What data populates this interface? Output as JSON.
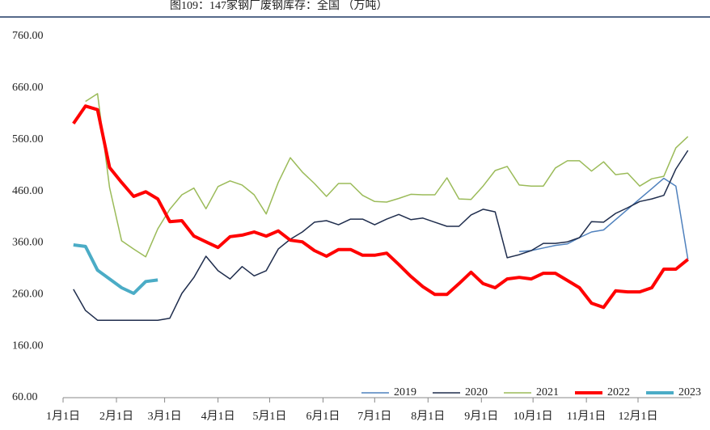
{
  "chart_data": {
    "type": "line",
    "title": "图109：147家钢厂废钢库存：全国 （万吨）",
    "x": [
      6,
      13,
      20,
      27,
      34,
      41,
      48,
      55,
      62,
      69,
      76,
      83,
      90,
      97,
      104,
      111,
      118,
      125,
      132,
      139,
      146,
      153,
      160,
      167,
      174,
      181,
      188,
      195,
      202,
      209,
      216,
      223,
      230,
      237,
      244,
      251,
      258,
      265,
      272,
      279,
      286,
      293,
      300,
      307,
      314,
      321,
      328,
      335,
      342,
      349,
      356,
      363
    ],
    "xlim": [
      0,
      365
    ],
    "xticks": [
      {
        "value": 0,
        "label": "1月1日"
      },
      {
        "value": 31,
        "label": "2月1日"
      },
      {
        "value": 59,
        "label": "3月1日"
      },
      {
        "value": 90,
        "label": "4月1日"
      },
      {
        "value": 120,
        "label": "5月1日"
      },
      {
        "value": 151,
        "label": "6月1日"
      },
      {
        "value": 181,
        "label": "7月1日"
      },
      {
        "value": 212,
        "label": "8月1日"
      },
      {
        "value": 243,
        "label": "9月1日"
      },
      {
        "value": 273,
        "label": "10月1日"
      },
      {
        "value": 304,
        "label": "11月1日"
      },
      {
        "value": 334,
        "label": "12月1日"
      }
    ],
    "ylim": [
      60,
      760
    ],
    "yticks": [
      {
        "value": 60,
        "label": "60.00"
      },
      {
        "value": 160,
        "label": "160.00"
      },
      {
        "value": 260,
        "label": "260.00"
      },
      {
        "value": 360,
        "label": "360.00"
      },
      {
        "value": 460,
        "label": "460.00"
      },
      {
        "value": 560,
        "label": "560.00"
      },
      {
        "value": 660,
        "label": "660.00"
      },
      {
        "value": 760,
        "label": "760.00"
      }
    ],
    "grid": false,
    "legend": "bottom-right",
    "series": [
      {
        "name": "2019",
        "color": "#4f81bd",
        "width": 1.5,
        "values": [
          null,
          null,
          null,
          null,
          null,
          null,
          null,
          null,
          null,
          null,
          null,
          null,
          null,
          null,
          null,
          null,
          null,
          null,
          null,
          null,
          null,
          null,
          null,
          null,
          null,
          null,
          null,
          null,
          null,
          null,
          null,
          null,
          null,
          null,
          null,
          null,
          null,
          343,
          345,
          350,
          355,
          358,
          370,
          381,
          385,
          405,
          425,
          445,
          465,
          485,
          470,
          328
        ]
      },
      {
        "name": "2020",
        "color": "#1f2d4d",
        "width": 1.5,
        "values": [
          270,
          229,
          210,
          210,
          210,
          210,
          210,
          210,
          214,
          262,
          293,
          334,
          306,
          290,
          314,
          296,
          306,
          348,
          367,
          381,
          400,
          403,
          395,
          406,
          406,
          395,
          406,
          415,
          405,
          408,
          400,
          392,
          392,
          414,
          425,
          420,
          331,
          337,
          345,
          359,
          359,
          362,
          370,
          401,
          400,
          417,
          428,
          440,
          445,
          452,
          503,
          539
        ]
      },
      {
        "name": "2021",
        "color": "#9bbb59",
        "width": 1.5,
        "values": [
          null,
          634,
          649,
          467,
          364,
          348,
          333,
          387,
          425,
          453,
          466,
          426,
          469,
          480,
          472,
          453,
          416,
          477,
          525,
          497,
          475,
          450,
          475,
          475,
          452,
          440,
          439,
          446,
          454,
          453,
          453,
          486,
          445,
          444,
          470,
          500,
          508,
          472,
          470,
          470,
          505,
          519,
          519,
          499,
          517,
          492,
          495,
          470,
          484,
          489,
          544,
          566
        ]
      },
      {
        "name": "2022",
        "color": "#ff0000",
        "width": 4,
        "values": [
          591,
          625,
          618,
          506,
          477,
          450,
          459,
          445,
          401,
          403,
          373,
          362,
          351,
          372,
          375,
          381,
          373,
          383,
          365,
          362,
          345,
          334,
          347,
          347,
          336,
          336,
          340,
          318,
          295,
          275,
          260,
          260,
          281,
          303,
          281,
          273,
          290,
          293,
          290,
          301,
          301,
          287,
          273,
          243,
          235,
          267,
          265,
          265,
          273,
          309,
          309,
          328
        ]
      },
      {
        "name": "2023",
        "color": "#4bacc6",
        "width": 4,
        "values": [
          356,
          353,
          307,
          290,
          273,
          262,
          285,
          288,
          null,
          null,
          null,
          null,
          null,
          null,
          null,
          null,
          null,
          null,
          null,
          null,
          null,
          null,
          null,
          null,
          null,
          null,
          null,
          null,
          null,
          null,
          null,
          null,
          null,
          null,
          null,
          null,
          null,
          null,
          null,
          null,
          null,
          null,
          null,
          null,
          null,
          null,
          null,
          null,
          null,
          null,
          null,
          null
        ]
      }
    ]
  }
}
